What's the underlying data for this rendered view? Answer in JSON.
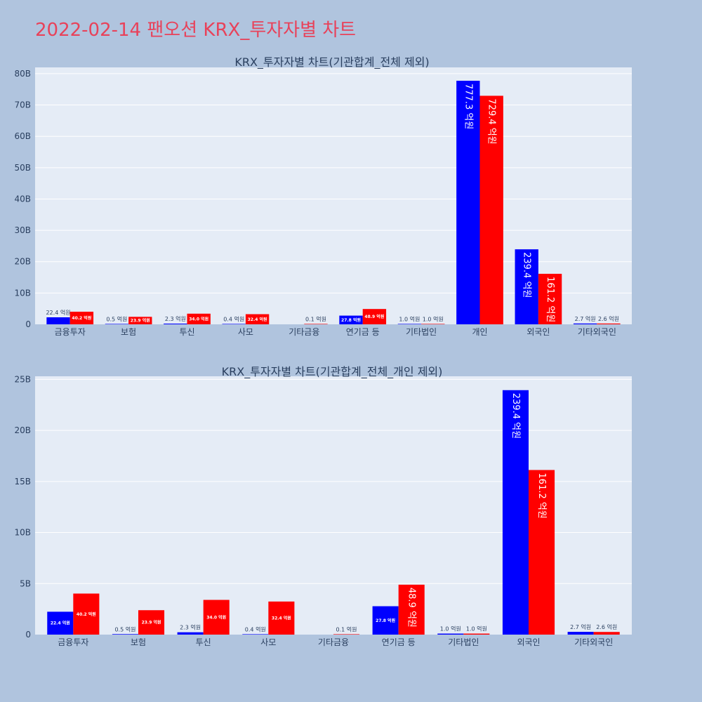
{
  "title": "2022-02-14 팬오션 KRX_투자자별 차트",
  "colors": {
    "buy": "#0000ff",
    "sell": "#ff0000",
    "plot_bg": "#e5ecf6",
    "page_bg": "#b0c4de",
    "title": "#e8425a"
  },
  "chart_data": [
    {
      "type": "bar",
      "title": "KRX_투자자별 차트(기관합계_전체 제외)",
      "categories": [
        "금융투자",
        "보험",
        "투신",
        "사모",
        "기타금융",
        "연기금 등",
        "기타법인",
        "개인",
        "외국인",
        "기타외국인"
      ],
      "ylim": [
        0,
        82
      ],
      "yticks": [
        0,
        10,
        20,
        30,
        40,
        50,
        60,
        70,
        80
      ],
      "ytick_labels": [
        "0",
        "10B",
        "20B",
        "30B",
        "40B",
        "50B",
        "60B",
        "70B",
        "80B"
      ],
      "grid": true,
      "series": [
        {
          "color": "#0000ff",
          "values": [
            2.24,
            0.05,
            0.23,
            0.04,
            null,
            2.78,
            0.1,
            77.73,
            23.94,
            0.27
          ],
          "labels": [
            "22.4 억원",
            "0.5 억원",
            "2.3 억원",
            "0.4 억원",
            "",
            "27.8 억원",
            "1.0 억원",
            "777.3 억원",
            "239.4 억원",
            "2.7 억원"
          ]
        },
        {
          "color": "#ff0000",
          "values": [
            4.02,
            2.39,
            3.4,
            3.24,
            0.01,
            4.89,
            0.1,
            72.94,
            16.12,
            0.26
          ],
          "labels": [
            "40.2 억원",
            "23.9 억원",
            "34.0 억원",
            "32.4 억원",
            "0.1 억원",
            "48.9 억원",
            "1.0 억원",
            "729.4 억원",
            "161.2 억원",
            "2.6 억원"
          ]
        }
      ]
    },
    {
      "type": "bar",
      "title": "KRX_투자자별 차트(기관합계_전체_개인 제외)",
      "categories": [
        "금융투자",
        "보험",
        "투신",
        "사모",
        "기타금융",
        "연기금 등",
        "기타법인",
        "외국인",
        "기타외국인"
      ],
      "ylim": [
        0,
        25.3
      ],
      "yticks": [
        0,
        5,
        10,
        15,
        20,
        25
      ],
      "ytick_labels": [
        "0",
        "5B",
        "10B",
        "15B",
        "20B",
        "25B"
      ],
      "grid": true,
      "series": [
        {
          "color": "#0000ff",
          "values": [
            2.24,
            0.05,
            0.23,
            0.04,
            null,
            2.78,
            0.1,
            23.94,
            0.27
          ],
          "labels": [
            "22.4 억원",
            "0.5 억원",
            "2.3 억원",
            "0.4 억원",
            "",
            "27.8 억원",
            "1.0 억원",
            "239.4 억원",
            "2.7 억원"
          ]
        },
        {
          "color": "#ff0000",
          "values": [
            4.02,
            2.39,
            3.4,
            3.24,
            0.01,
            4.89,
            0.1,
            16.12,
            0.26
          ],
          "labels": [
            "40.2 억원",
            "23.9 억원",
            "34.0 억원",
            "32.4 억원",
            "0.1 억원",
            "48.9 억원",
            "1.0 억원",
            "161.2 억원",
            "2.6 억원"
          ]
        }
      ]
    }
  ]
}
